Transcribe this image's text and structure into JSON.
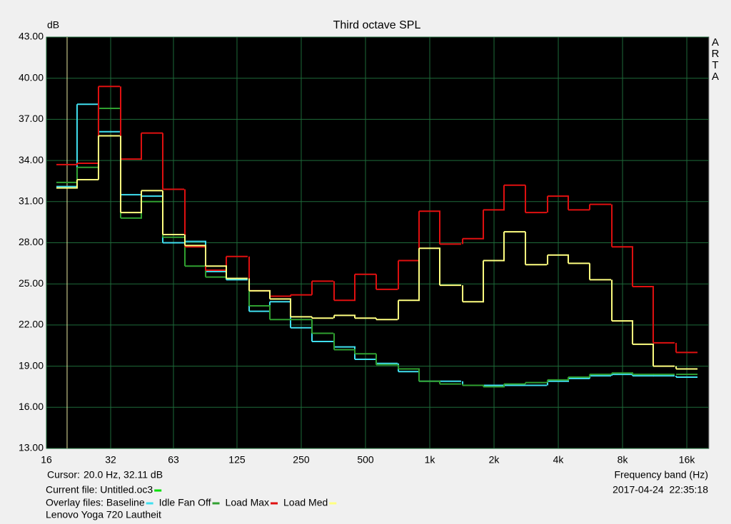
{
  "chart_data": {
    "type": "step",
    "title": "Third octave SPL",
    "y_label": "dB",
    "x_label": "Frequency band (Hz)",
    "brand": "ARTA",
    "cursor_label": "Cursor:",
    "cursor_text": "20.0 Hz, 32.11 dB",
    "cursor_x": 20,
    "current_file": "Current file: Untitled.oc3",
    "current_file_color": "#00e000",
    "overlay_label": "Overlay files:",
    "timestamp": "2017-04-24  22:35:18",
    "note": "Lenovo Yoga 720 Lautheit",
    "log_x": true,
    "grid": true,
    "x": [
      20,
      25,
      31.5,
      40,
      50,
      63,
      80,
      100,
      125,
      160,
      200,
      250,
      315,
      400,
      500,
      630,
      800,
      1000,
      1250,
      1600,
      2000,
      2500,
      3150,
      4000,
      5000,
      6300,
      8000,
      10000,
      12500,
      16000
    ],
    "xlim": [
      16,
      20300
    ],
    "xticks": [
      16,
      32,
      63,
      125,
      250,
      500,
      {
        "value": 1000,
        "label": "1k"
      },
      {
        "value": 2000,
        "label": "2k"
      },
      {
        "value": 4000,
        "label": "4k"
      },
      {
        "value": 8000,
        "label": "8k"
      },
      {
        "value": 16000,
        "label": "16k"
      }
    ],
    "ylim": [
      13,
      43
    ],
    "yticks": [
      {
        "value": 13,
        "label": "13.00"
      },
      {
        "value": 16,
        "label": "16.00"
      },
      {
        "value": 19,
        "label": "19.00"
      },
      {
        "value": 22,
        "label": "22.00"
      },
      {
        "value": 25,
        "label": "25.00"
      },
      {
        "value": 28,
        "label": "28.00"
      },
      {
        "value": 31,
        "label": "31.00"
      },
      {
        "value": 34,
        "label": "34.00"
      },
      {
        "value": 37,
        "label": "37.00"
      },
      {
        "value": 40,
        "label": "40.00"
      },
      {
        "value": 43,
        "label": "43.00"
      }
    ],
    "series": [
      {
        "name": "Baseline",
        "color": "#40e0f0",
        "values": [
          32.1,
          38.1,
          36.1,
          31.5,
          31.4,
          28.0,
          28.1,
          25.9,
          25.3,
          23.0,
          23.7,
          21.8,
          20.8,
          20.4,
          19.5,
          19.2,
          18.6,
          17.9,
          17.9,
          17.6,
          17.6,
          17.6,
          17.6,
          17.9,
          18.1,
          18.3,
          18.4,
          18.3,
          18.3,
          18.2
        ]
      },
      {
        "name": "Idle Fan Off",
        "color": "#30a030",
        "values": [
          32.4,
          33.5,
          37.8,
          29.8,
          31.0,
          28.4,
          26.3,
          25.5,
          25.4,
          23.4,
          22.4,
          22.4,
          21.4,
          20.2,
          19.9,
          19.1,
          18.8,
          17.9,
          17.7,
          17.6,
          17.5,
          17.7,
          17.8,
          18.0,
          18.2,
          18.4,
          18.5,
          18.4,
          18.4,
          18.4
        ]
      },
      {
        "name": "Load Max",
        "color": "#e01010",
        "values": [
          33.7,
          33.8,
          39.4,
          34.1,
          36.0,
          31.9,
          27.7,
          26.0,
          27.0,
          24.5,
          24.1,
          24.2,
          25.2,
          23.8,
          25.7,
          24.6,
          26.7,
          30.3,
          27.9,
          28.3,
          30.4,
          32.2,
          30.2,
          31.4,
          30.4,
          30.8,
          27.7,
          24.8,
          20.7,
          20.0
        ]
      },
      {
        "name": "Load Med",
        "color": "#ffff80",
        "values": [
          32.0,
          32.6,
          35.8,
          30.2,
          31.8,
          28.6,
          27.8,
          26.3,
          25.4,
          24.5,
          23.9,
          22.6,
          22.5,
          22.7,
          22.5,
          22.4,
          23.8,
          27.6,
          24.9,
          23.7,
          26.7,
          28.8,
          26.4,
          27.1,
          26.5,
          25.3,
          22.3,
          20.6,
          19.0,
          18.8
        ]
      }
    ]
  }
}
